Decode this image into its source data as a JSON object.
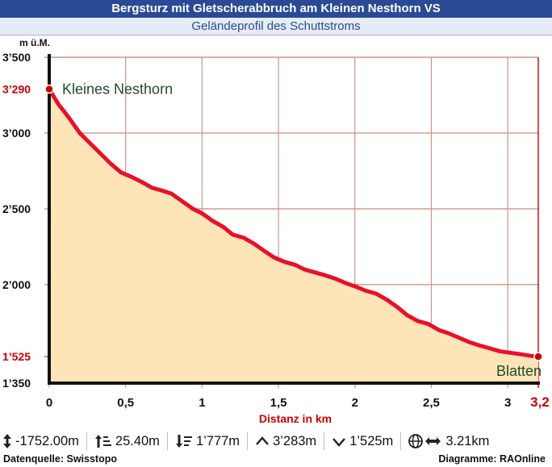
{
  "header": {
    "title": "Bergsturz mit Gletscherabbruch am Kleinen Nesthorn VS",
    "subtitle": "Geländeprofil des Schuttstroms"
  },
  "chart_data": {
    "type": "area",
    "xlabel": "Distanz in km",
    "ylabel": "m ü.M.",
    "xlim": [
      0,
      3.2
    ],
    "ylim": [
      1350,
      3500
    ],
    "x_ticks": [
      "0",
      "0,5",
      "1",
      "1,5",
      "2",
      "2,5",
      "3"
    ],
    "x_end_label": "3,2",
    "y_ticks": [
      "1’350",
      "2’000",
      "2’500",
      "3’000",
      "3’500"
    ],
    "y_highlight_ticks": [
      "3’290",
      "1’525"
    ],
    "start_label": "Kleines Nesthorn",
    "end_label": "Blatten",
    "start_elevation": 3290,
    "end_elevation": 1525,
    "grid": true,
    "colors": {
      "profile_line": "#e8102c",
      "fill": "#fde5b7",
      "grid": "#c9978a",
      "highlight": "#cc0000",
      "label": "#1e4a28"
    },
    "profile": {
      "x": [
        0,
        0.06,
        0.13,
        0.2,
        0.27,
        0.34,
        0.4,
        0.47,
        0.54,
        0.6,
        0.67,
        0.74,
        0.8,
        0.87,
        0.94,
        1.0,
        1.07,
        1.14,
        1.2,
        1.27,
        1.34,
        1.41,
        1.47,
        1.54,
        1.61,
        1.67,
        1.74,
        1.81,
        1.87,
        1.94,
        2.01,
        2.07,
        2.14,
        2.21,
        2.28,
        2.34,
        2.41,
        2.48,
        2.55,
        2.61,
        2.68,
        2.75,
        2.81,
        2.88,
        2.95,
        3.02,
        3.09,
        3.15,
        3.2
      ],
      "y": [
        3290,
        3190,
        3100,
        3000,
        2930,
        2860,
        2800,
        2740,
        2710,
        2680,
        2640,
        2620,
        2600,
        2550,
        2500,
        2470,
        2420,
        2380,
        2330,
        2310,
        2270,
        2220,
        2180,
        2150,
        2130,
        2100,
        2080,
        2060,
        2040,
        2010,
        1985,
        1960,
        1940,
        1900,
        1850,
        1800,
        1760,
        1740,
        1700,
        1680,
        1650,
        1620,
        1600,
        1580,
        1560,
        1550,
        1540,
        1530,
        1525
      ]
    }
  },
  "stats": {
    "height_diff": "-1752.00m",
    "ascent": "25.40m",
    "descent": "1’777m",
    "max_elevation": "3’283m",
    "min_elevation": "1’525m",
    "distance": "3.21km"
  },
  "footer": {
    "source": "Datenquelle: Swisstopo",
    "credit": "Diagramme: RAOnline"
  }
}
